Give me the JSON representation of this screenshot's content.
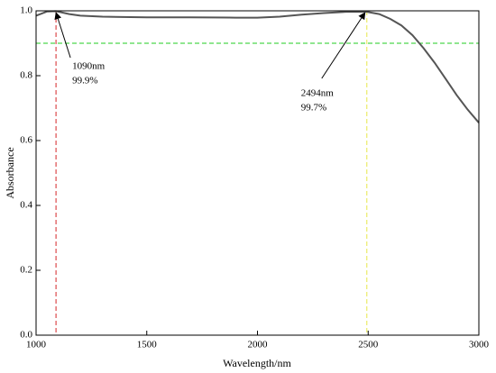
{
  "chart_data": {
    "type": "line",
    "x_label": "Wavelength/nm",
    "y_label": "Absorbance",
    "x": [
      1000,
      1050,
      1090,
      1150,
      1200,
      1300,
      1500,
      1700,
      1900,
      2000,
      2100,
      2200,
      2300,
      2400,
      2494,
      2550,
      2600,
      2650,
      2700,
      2750,
      2800,
      2850,
      2900,
      2950,
      3000
    ],
    "series": [
      {
        "color": "#555555",
        "values": [
          0.985,
          0.998,
          0.999,
          0.99,
          0.985,
          0.982,
          0.98,
          0.98,
          0.979,
          0.979,
          0.982,
          0.988,
          0.993,
          0.997,
          0.997,
          0.99,
          0.975,
          0.955,
          0.925,
          0.885,
          0.84,
          0.79,
          0.74,
          0.695,
          0.655
        ]
      }
    ],
    "xlim": [
      1000,
      3000
    ],
    "ylim": [
      0,
      1.0
    ],
    "xticks": [
      1000,
      1500,
      2000,
      2500,
      3000
    ],
    "yticks": [
      {
        "value": 0,
        "label": "0.0"
      },
      {
        "value": 0.2,
        "label": "0.2"
      },
      {
        "value": 0.4,
        "label": "0.4"
      },
      {
        "value": 0.6,
        "label": "0.6"
      },
      {
        "value": 0.8,
        "label": "0.8"
      },
      {
        "value": 1.0,
        "label": "1.0"
      }
    ],
    "vlines": [
      {
        "x": 1090,
        "color": "#d62728"
      },
      {
        "x": 2494,
        "color": "#e8e84a"
      }
    ],
    "hlines": [
      {
        "y": 0.9,
        "color": "#22cc22"
      }
    ],
    "annotations": [
      [
        "1090nm",
        "99.9%"
      ],
      [
        "2494nm",
        "99.7%"
      ]
    ]
  }
}
